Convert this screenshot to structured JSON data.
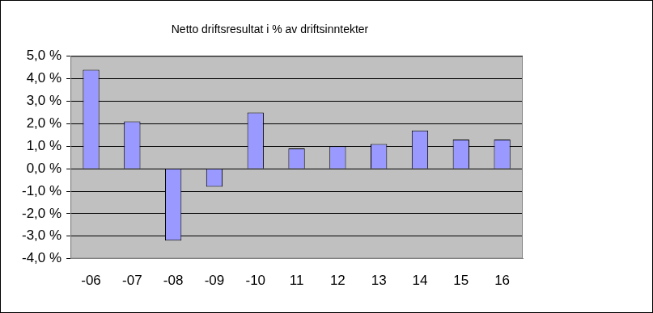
{
  "chart_data": {
    "type": "bar",
    "title": "Netto driftsresultat i % av driftsinntekter",
    "categories": [
      "-06",
      "-07",
      "-08",
      "-09",
      "-10",
      "11",
      "12",
      "13",
      "14",
      "15",
      "16"
    ],
    "values": [
      4.4,
      2.1,
      -3.2,
      -0.8,
      2.5,
      0.9,
      1.0,
      1.1,
      1.7,
      1.3,
      1.3
    ],
    "color": "#9999ff",
    "ylim": [
      -4,
      5
    ],
    "yticks": [
      {
        "value": -4,
        "label": "-4,0 %"
      },
      {
        "value": -3,
        "label": "-3,0 %"
      },
      {
        "value": -2,
        "label": "-2,0 %"
      },
      {
        "value": -1,
        "label": "-1,0 %"
      },
      {
        "value": 0,
        "label": "0,0 %"
      },
      {
        "value": 1,
        "label": "1,0 %"
      },
      {
        "value": 2,
        "label": "2,0 %"
      },
      {
        "value": 3,
        "label": "3,0 %"
      },
      {
        "value": 4,
        "label": "4,0 %"
      },
      {
        "value": 5,
        "label": "5,0 %"
      }
    ],
    "grid": true
  }
}
